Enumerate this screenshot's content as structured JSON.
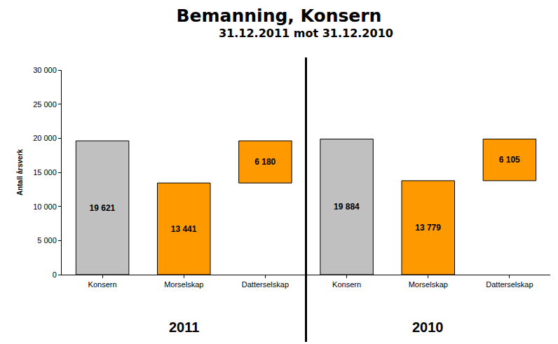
{
  "chart_data": {
    "type": "waterfall",
    "title": "Bemanning, Konsern",
    "subtitle": "31.12.2011 mot 31.12.2010",
    "ylabel": "Antall årsverk",
    "ylim": [
      0,
      30000
    ],
    "yticks": [
      0,
      {
        "value": 5000,
        "label": "5 000"
      },
      {
        "value": 10000,
        "label": "10 000"
      },
      {
        "value": 15000,
        "label": "15 000"
      },
      {
        "value": 20000,
        "label": "20 000"
      },
      {
        "value": 25000,
        "label": "25 000"
      },
      {
        "value": 30000,
        "label": "30 000"
      }
    ],
    "data_labels": true,
    "panels": [
      {
        "label": "2011",
        "categories": [
          "Konsern",
          "Morselskap",
          "Datterselskap"
        ],
        "values": [
          19621,
          13441,
          6180
        ],
        "value_labels": [
          "19 621",
          "13 441",
          "6 180"
        ],
        "colors": [
          "#c0c0c0",
          "#ff9900",
          "#ff9900"
        ]
      },
      {
        "label": "2010",
        "categories": [
          "Konsern",
          "Morselskap",
          "Datterselskap"
        ],
        "values": [
          19884,
          13779,
          6105
        ],
        "value_labels": [
          "19 884",
          "13 779",
          "6 105"
        ],
        "colors": [
          "#c0c0c0",
          "#ff9900",
          "#ff9900"
        ]
      }
    ]
  }
}
